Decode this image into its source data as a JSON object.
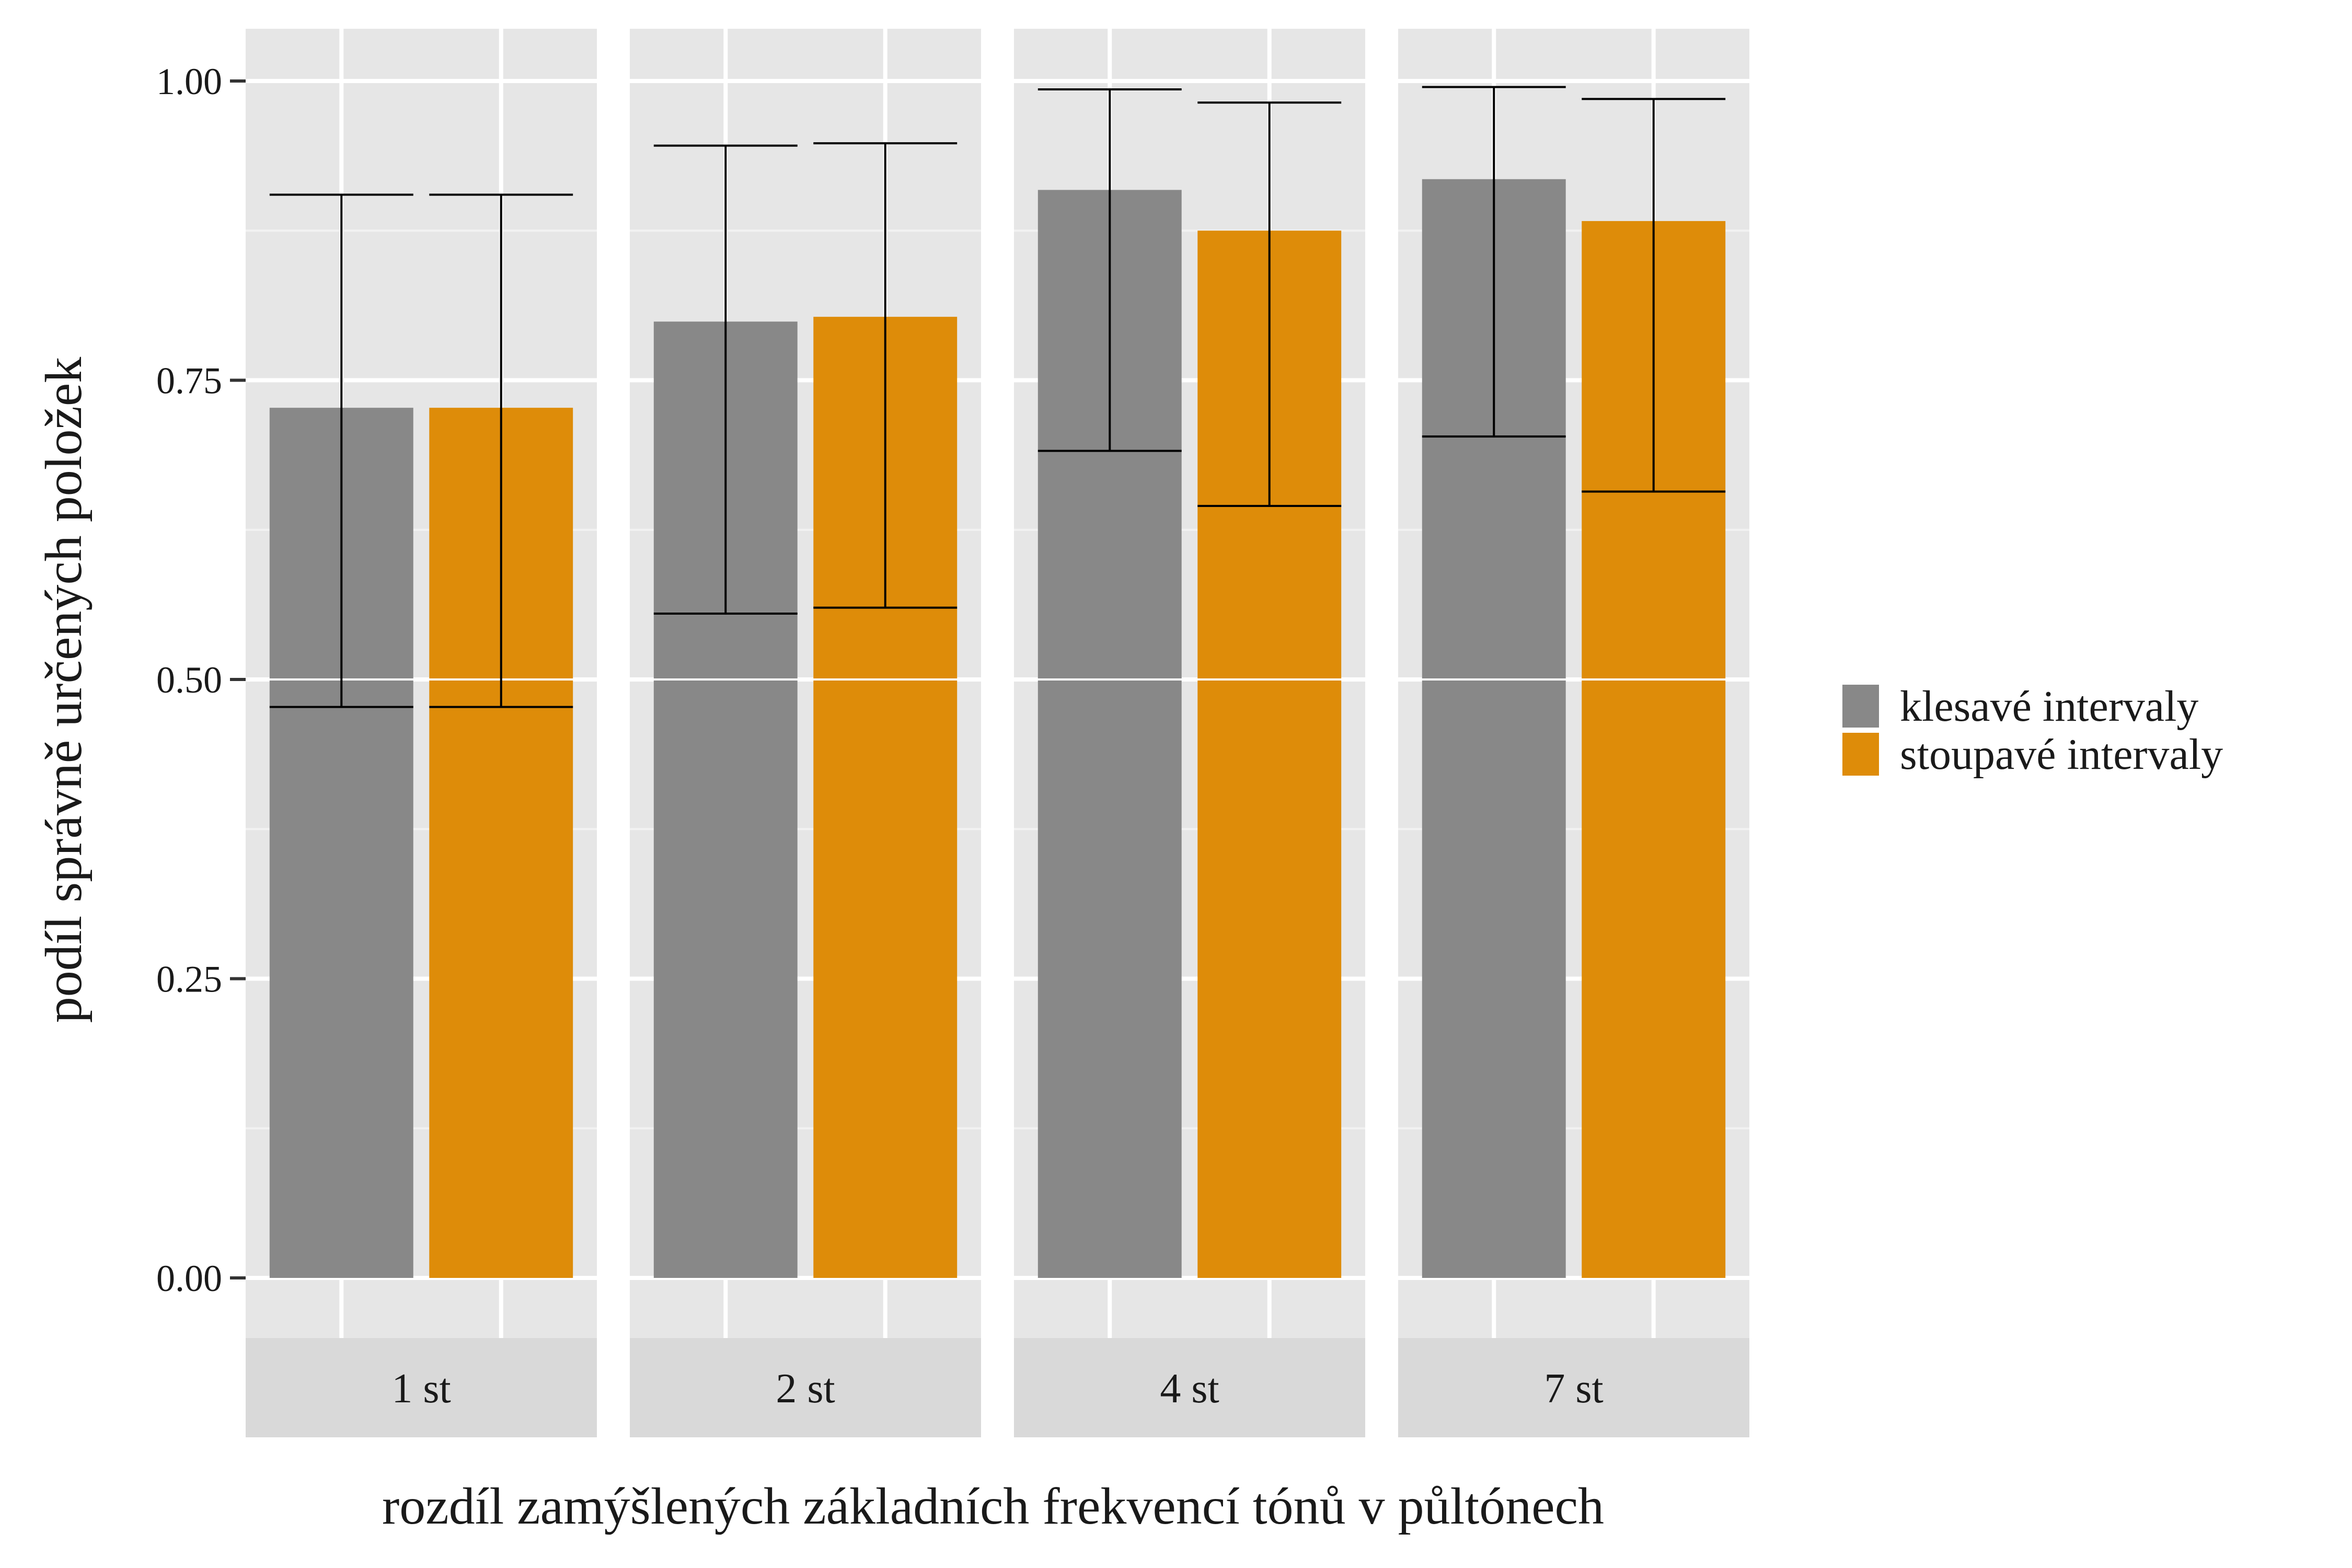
{
  "chart_data": {
    "type": "bar",
    "title": "",
    "xlabel": "rozdíl zamýšlených základních frekvencí tónů v půltónech",
    "ylabel": "podíl správně určených položek",
    "ylim": [
      -0.05,
      1.0
    ],
    "yticks": [
      0.0,
      0.25,
      0.5,
      0.75,
      1.0
    ],
    "ytick_labels": [
      "0.00",
      "0.25",
      "0.50",
      "0.75",
      "1.00"
    ],
    "grid": true,
    "legend_position": "right",
    "facets": [
      "1 st",
      "2 st",
      "4 st",
      "7 st"
    ],
    "series": [
      {
        "name": "klesavé intervaly",
        "color": "#888888",
        "values": [
          0.727,
          0.799,
          0.909,
          0.918
        ],
        "ci_low": [
          0.477,
          0.555,
          0.691,
          0.703
        ],
        "ci_high": [
          0.905,
          0.946,
          0.993,
          0.995
        ]
      },
      {
        "name": "stoupavé intervaly",
        "color": "#DE8C09",
        "values": [
          0.727,
          0.803,
          0.875,
          0.883
        ],
        "ci_low": [
          0.477,
          0.56,
          0.645,
          0.657
        ],
        "ci_high": [
          0.905,
          0.948,
          0.982,
          0.985
        ]
      }
    ]
  }
}
